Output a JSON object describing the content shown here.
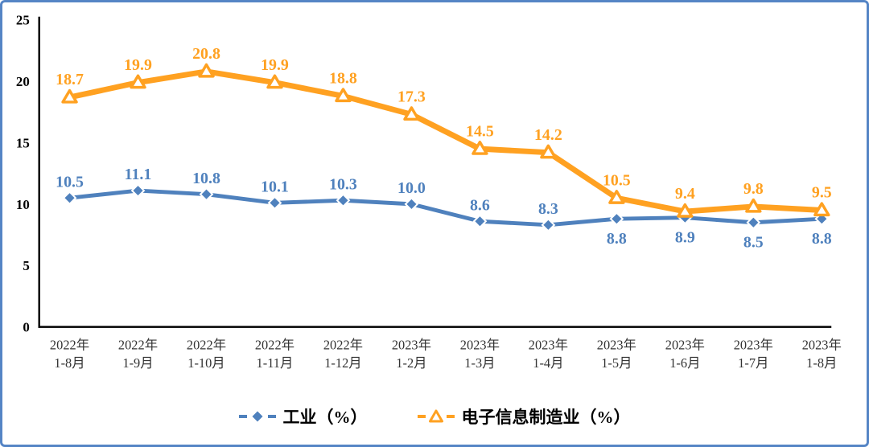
{
  "frame": {
    "border_color": "#5585c5",
    "background": "#ffffff",
    "axis_color": "#000000",
    "x_label_color": "#333333"
  },
  "chart_data": {
    "type": "line",
    "title": "",
    "xlabel": "",
    "ylabel": "",
    "grid": false,
    "legend_position": "bottom",
    "y_axis": {
      "min": 0,
      "max": 25,
      "ticks": [
        "0",
        "5",
        "10",
        "15",
        "20",
        "25"
      ]
    },
    "categories": [
      [
        "2022年",
        "1-8月"
      ],
      [
        "2022年",
        "1-9月"
      ],
      [
        "2022年",
        "1-10月"
      ],
      [
        "2022年",
        "1-11月"
      ],
      [
        "2022年",
        "1-12月"
      ],
      [
        "2023年",
        "1-2月"
      ],
      [
        "2023年",
        "1-3月"
      ],
      [
        "2023年",
        "1-4月"
      ],
      [
        "2023年",
        "1-5月"
      ],
      [
        "2023年",
        "1-6月"
      ],
      [
        "2023年",
        "1-7月"
      ],
      [
        "2023年",
        "1-8月"
      ]
    ],
    "series": [
      {
        "name": "工业（%）",
        "color": "#4f81bd",
        "marker": "diamond",
        "line_width": 5,
        "values": [
          10.5,
          11.1,
          10.8,
          10.1,
          10.3,
          10.0,
          8.6,
          8.3,
          8.8,
          8.9,
          8.5,
          8.8
        ],
        "labels": [
          "10.5",
          "11.1",
          "10.8",
          "10.1",
          "10.3",
          "10.0",
          "8.6",
          "8.3",
          "8.8",
          "8.9",
          "8.5",
          "8.8"
        ],
        "label_positions": [
          "above",
          "above",
          "above",
          "above",
          "above",
          "above",
          "above",
          "above",
          "below",
          "below",
          "below",
          "below"
        ]
      },
      {
        "name": "电子信息制造业（%）",
        "color": "#ffa121",
        "marker": "triangle",
        "line_width": 7,
        "values": [
          18.7,
          19.9,
          20.8,
          19.9,
          18.8,
          17.3,
          14.5,
          14.2,
          10.5,
          9.4,
          9.8,
          9.5
        ],
        "labels": [
          "18.7",
          "19.9",
          "20.8",
          "19.9",
          "18.8",
          "17.3",
          "14.5",
          "14.2",
          "10.5",
          "9.4",
          "9.8",
          "9.5"
        ],
        "label_positions": [
          "above",
          "above",
          "above",
          "above",
          "above",
          "above",
          "above",
          "above",
          "above",
          "above",
          "above",
          "above"
        ]
      }
    ]
  }
}
